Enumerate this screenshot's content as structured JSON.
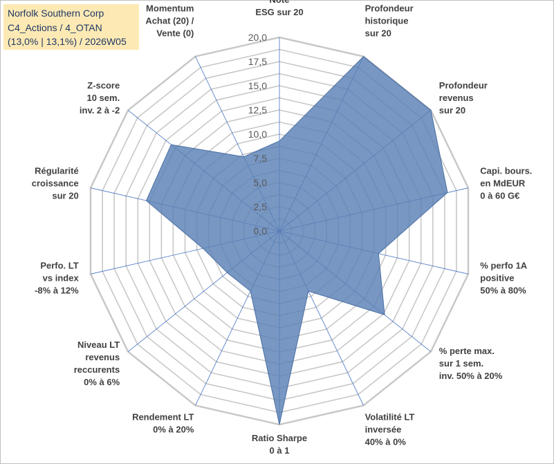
{
  "info": {
    "line1": "Norfolk Southern Corp",
    "line2": "C4_Actions / 4_OTAN",
    "line3": "(13,0% | 13,1%) / 2026W05"
  },
  "chart_data": {
    "type": "radar",
    "title": "",
    "rmax": 20,
    "ticks": [
      "0,0",
      "2,5",
      "5,0",
      "7,5",
      "10,0",
      "12,5",
      "15,0",
      "17,5",
      "20,0"
    ],
    "tick_values": [
      0,
      2.5,
      5,
      7.5,
      10,
      12.5,
      15,
      17.5,
      20
    ],
    "axes": [
      {
        "label": [
          "Note",
          "ESG sur 20"
        ],
        "value": 9.3
      },
      {
        "label": [
          "Profondeur",
          "historique",
          "sur 20"
        ],
        "value": 20
      },
      {
        "label": [
          "Profondeur",
          "revenus",
          "sur 20"
        ],
        "value": 20
      },
      {
        "label": [
          "Capi. bours.",
          "en MdEUR",
          "0 à 60 G€"
        ],
        "value": 17.8
      },
      {
        "label": [
          "% perfo 1A",
          "positive",
          "50% à 80%"
        ],
        "value": 10.5
      },
      {
        "label": [
          "% perte max.",
          "sur 1 sem.",
          "inv. 50% à 20%"
        ],
        "value": 13.9
      },
      {
        "label": [
          "Volatilité LT",
          "inversée",
          "40% à 0%"
        ],
        "value": 6.9
      },
      {
        "label": [
          "Ratio Sharpe",
          "0 à 1"
        ],
        "value": 20
      },
      {
        "label": [
          "Rendement LT",
          "0% à 20%"
        ],
        "value": 6.9
      },
      {
        "label": [
          "Niveau LT",
          "revenus",
          "reccurents",
          "0% à 6%"
        ],
        "value": 6.9
      },
      {
        "label": [
          "Perfo. LT",
          "vs index",
          "-8% à 12%"
        ],
        "value": 8.1
      },
      {
        "label": [
          "Régularité",
          "croissance",
          "sur 20"
        ],
        "value": 14.1
      },
      {
        "label": [
          "Z-score",
          "10 sem.",
          "inv. 2 à -2"
        ],
        "value": 14.3
      },
      {
        "label": [
          "Momentum",
          "Achat (20) /",
          "Vente (0)"
        ],
        "value": 8.5
      }
    ],
    "colors": {
      "fill": "#5a80b5",
      "stroke": "#4a6fa5",
      "grid": "#c8c8c8",
      "spoke": "#4472c4"
    }
  }
}
